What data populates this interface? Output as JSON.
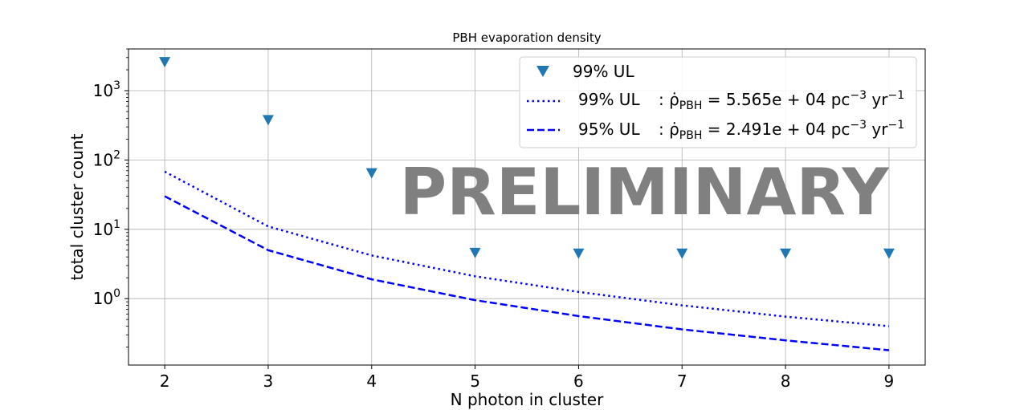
{
  "chart_data": {
    "type": "line",
    "title": "PBH evaporation density",
    "xlabel": "N photon in cluster",
    "ylabel": "total cluster count",
    "x": [
      2,
      3,
      4,
      5,
      6,
      7,
      8,
      9
    ],
    "xlim": [
      1.65,
      9.35
    ],
    "yscale": "log",
    "ylim": [
      0.11,
      4000
    ],
    "yticks": [
      1,
      10,
      100,
      1000
    ],
    "ytick_labels": [
      "10^0",
      "10^1",
      "10^2",
      "10^3"
    ],
    "grid": true,
    "legend_position": "top-right",
    "watermark": "PRELIMINARY",
    "series": [
      {
        "name": "99% UL",
        "marker": "triangle-down",
        "color": "#1f77b4",
        "values": [
          2600,
          380,
          65,
          4.6,
          4.5,
          4.5,
          4.5,
          4.5
        ]
      },
      {
        "name_prefix": "99% UL",
        "name_rate": "5.565e + 04",
        "linestyle": "dotted",
        "color": "#0000ff",
        "values": [
          68,
          11,
          4.2,
          2.1,
          1.25,
          0.8,
          0.55,
          0.4
        ]
      },
      {
        "name_prefix": "95% UL",
        "name_rate": "2.491e + 04",
        "linestyle": "dashed",
        "color": "#0000ff",
        "values": [
          30,
          5,
          1.9,
          0.95,
          0.56,
          0.36,
          0.25,
          0.18
        ]
      }
    ]
  }
}
